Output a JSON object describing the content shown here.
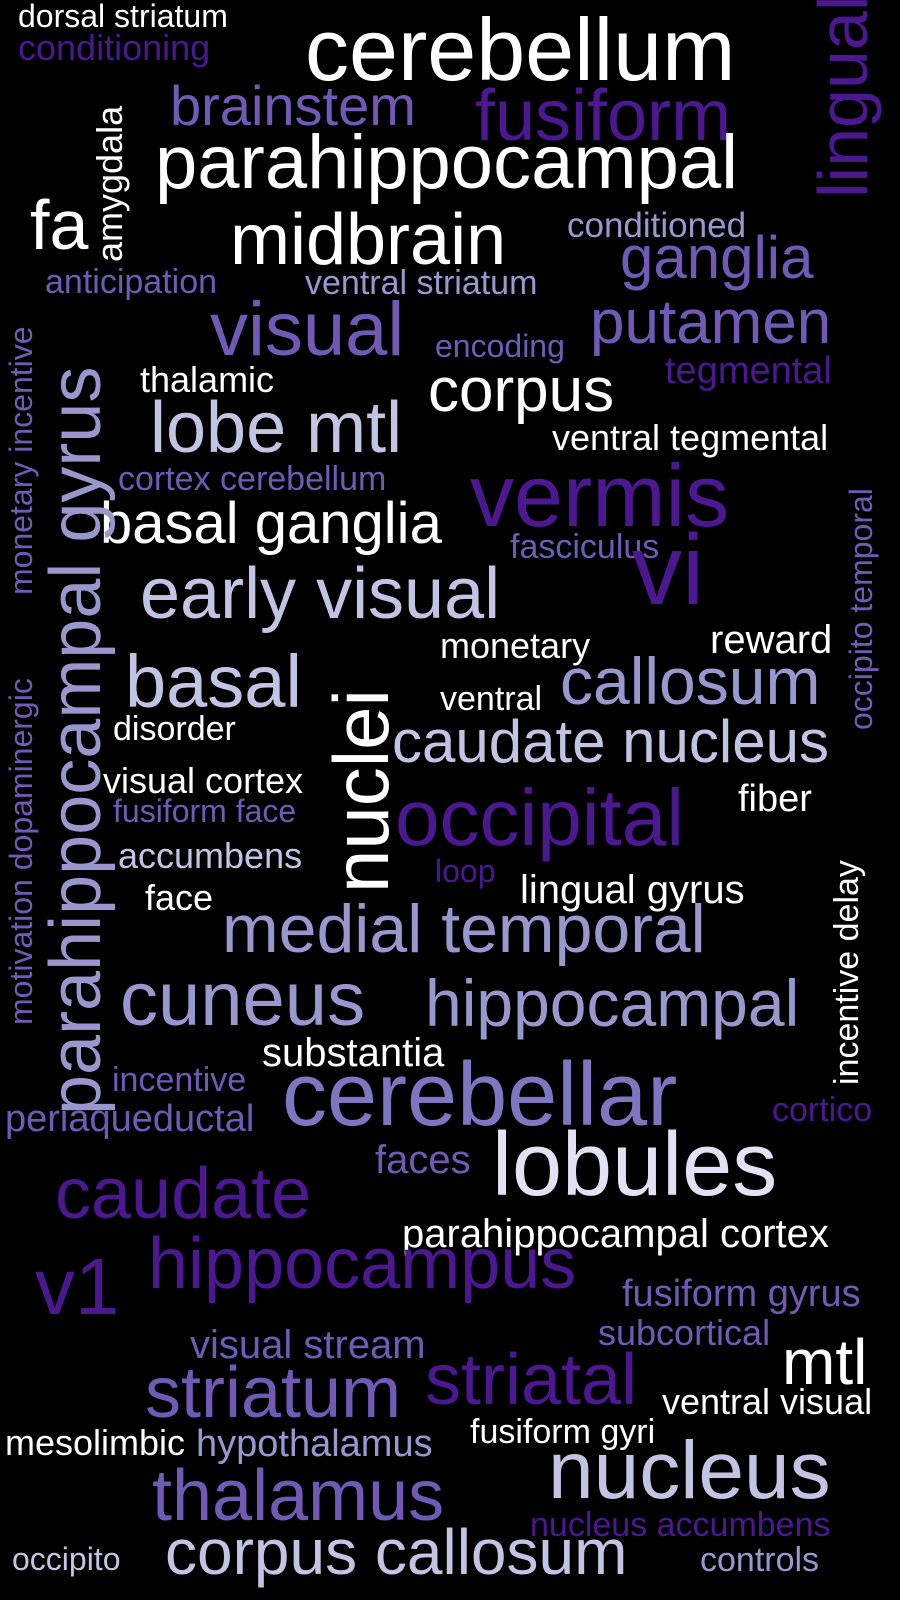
{
  "palette": {
    "background": "#000000",
    "white": "#FFFFFF",
    "lavender": "#C3C3E3",
    "periwinkle": "#9A97CF",
    "violet": "#6F5BB5",
    "deep_violet": "#4B1892"
  },
  "words": [
    "dorsal striatum",
    "conditioning",
    "cerebellum",
    "lingual",
    "amygdala",
    "brainstem",
    "fusiform",
    "parahippocampal",
    "fa",
    "midbrain",
    "conditioned",
    "ganglia",
    "anticipation",
    "ventral striatum",
    "visual",
    "encoding",
    "putamen",
    "tegmental",
    "monetary incentive",
    "parahippocampal gyrus",
    "thalamic",
    "corpus",
    "lobe mtl",
    "ventral tegmental",
    "cortex cerebellum",
    "vermis",
    "occipito temporal",
    "basal ganglia",
    "fasciculus",
    "vi",
    "early visual",
    "monetary",
    "reward",
    "motivation dopaminergic",
    "basal",
    "nuclei",
    "callosum",
    "ventral",
    "disorder",
    "caudate nucleus",
    "visual cortex",
    "fusiform face",
    "occipital",
    "fiber",
    "accumbens",
    "loop",
    "lingual gyrus",
    "face",
    "incentive delay",
    "medial temporal",
    "cuneus",
    "hippocampal",
    "substantia",
    "incentive",
    "cerebellar",
    "periaqueductal",
    "cortico",
    "faces",
    "lobules",
    "caudate",
    "parahippocampal cortex",
    "v1",
    "hippocampus",
    "fusiform gyrus",
    "visual stream",
    "subcortical",
    "mtl",
    "striatum",
    "striatal",
    "ventral visual",
    "mesolimbic",
    "hypothalamus",
    "fusiform gyri",
    "nucleus",
    "thalamus",
    "nucleus accumbens",
    "occipito",
    "corpus callosum",
    "controls"
  ]
}
